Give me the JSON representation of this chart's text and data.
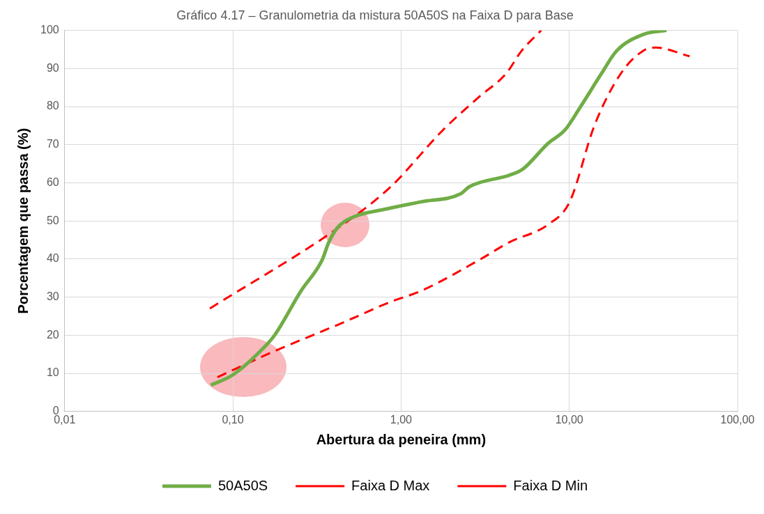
{
  "chart_data": {
    "type": "line",
    "title": "Gráfico 4.17 – Granulometria da mistura 50A50S na Faixa D para Base",
    "xlabel": "Abertura da peneira (mm)",
    "ylabel": "Porcentagem que passa (%)",
    "log": "x",
    "grid": true,
    "legend": "bottom",
    "marker": "none",
    "xlim": [
      0.01,
      100
    ],
    "xticks": [
      {
        "value": 0.01,
        "label": "0,01"
      },
      {
        "value": 0.1,
        "label": "0,10"
      },
      {
        "value": 1,
        "label": "1,00"
      },
      {
        "value": 10,
        "label": "10,00"
      },
      {
        "value": 100,
        "label": "100,00"
      }
    ],
    "ylim": [
      0,
      100
    ],
    "yticks": [
      0,
      10,
      20,
      30,
      40,
      50,
      60,
      70,
      80,
      90,
      100
    ],
    "series": [
      {
        "name": "50A50S",
        "color": "#70ad47",
        "line_style": "solid",
        "x": [
          0.074,
          0.1,
          0.154,
          0.177,
          0.254,
          0.339,
          0.372,
          0.42,
          0.525,
          0.79,
          1.31,
          2.26,
          2.55,
          4.4,
          5.26,
          7.5,
          9.4,
          11.6,
          15.5,
          19.1,
          27.4,
          37.8
        ],
        "values": [
          6.9,
          9.6,
          16.9,
          20,
          31.6,
          39.7,
          44.4,
          48.3,
          51.1,
          53,
          55,
          57.1,
          59,
          62,
          63.5,
          70.4,
          73.8,
          79.8,
          88.6,
          94.6,
          98.9,
          100
        ]
      },
      {
        "name": "Faixa D Max",
        "color": "#ff0000",
        "line_style": "dashed",
        "x": [
          0.073,
          0.45,
          0.87,
          1.77,
          2.9,
          4.2,
          5.2,
          6.8
        ],
        "values": [
          27,
          49,
          59,
          73.8,
          82.5,
          88.6,
          94.6,
          100
        ]
      },
      {
        "name": "Faixa D Min",
        "color": "#ff0000",
        "line_style": "dashed",
        "x": [
          0.081,
          0.17,
          0.45,
          0.87,
          1.31,
          2.9,
          4.4,
          7.45,
          10.05,
          14.1,
          20.2,
          27.4,
          32.6,
          51.9
        ],
        "values": [
          9,
          15.5,
          23.3,
          28.8,
          31.6,
          39.7,
          44.4,
          49,
          55,
          75,
          88.6,
          94.6,
          95.5,
          93.2
        ]
      }
    ]
  }
}
